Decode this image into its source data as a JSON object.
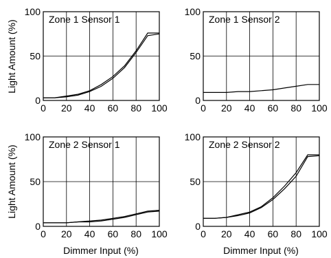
{
  "figure": {
    "ylabel": "Light Amount (%)",
    "xlabel": "Dimmer Input (%)"
  },
  "chart_data": [
    {
      "type": "line",
      "title": "Zone 1 Sensor 1",
      "xlabel": "",
      "ylabel": "Light Amount (%)",
      "xlim": [
        0,
        100
      ],
      "ylim": [
        0,
        100
      ],
      "xticks": [
        0,
        20,
        40,
        60,
        80,
        100
      ],
      "yticks": [
        0,
        50,
        100
      ],
      "grid": true,
      "series": [
        {
          "x": [
            0,
            10,
            20,
            30,
            40,
            50,
            60,
            70,
            80,
            90,
            100
          ],
          "values": [
            3,
            3,
            4,
            6,
            10,
            16,
            25,
            37,
            54,
            73,
            75
          ]
        },
        {
          "x": [
            0,
            10,
            20,
            30,
            40,
            50,
            60,
            70,
            80,
            90,
            100
          ],
          "values": [
            3,
            3,
            5,
            7,
            11,
            18,
            27,
            39,
            56,
            76,
            76
          ]
        }
      ]
    },
    {
      "type": "line",
      "title": "Zone 1 Sensor 2",
      "xlabel": "",
      "ylabel": "",
      "xlim": [
        0,
        100
      ],
      "ylim": [
        0,
        100
      ],
      "xticks": [
        0,
        20,
        40,
        60,
        80,
        100
      ],
      "yticks": [
        0,
        50,
        100
      ],
      "grid": true,
      "series": [
        {
          "x": [
            0,
            10,
            20,
            30,
            40,
            50,
            60,
            70,
            80,
            90,
            100
          ],
          "values": [
            9,
            9,
            9,
            10,
            10,
            11,
            12,
            14,
            16,
            18,
            18
          ]
        }
      ]
    },
    {
      "type": "line",
      "title": "Zone 2 Sensor 1",
      "xlabel": "Dimmer Input (%)",
      "ylabel": "Light Amount (%)",
      "xlim": [
        0,
        100
      ],
      "ylim": [
        0,
        100
      ],
      "xticks": [
        0,
        20,
        40,
        60,
        80,
        100
      ],
      "yticks": [
        0,
        50,
        100
      ],
      "grid": true,
      "series": [
        {
          "x": [
            0,
            10,
            20,
            30,
            40,
            50,
            60,
            70,
            80,
            90,
            100
          ],
          "values": [
            4,
            4,
            4,
            5,
            5,
            6,
            8,
            10,
            13,
            16,
            17
          ]
        },
        {
          "x": [
            0,
            10,
            20,
            30,
            40,
            50,
            60,
            70,
            80,
            90,
            100
          ],
          "values": [
            4,
            4,
            4,
            5,
            6,
            7,
            9,
            11,
            14,
            17,
            18
          ]
        }
      ]
    },
    {
      "type": "line",
      "title": "Zone 2 Sensor 2",
      "xlabel": "Dimmer Input (%)",
      "ylabel": "",
      "xlim": [
        0,
        100
      ],
      "ylim": [
        0,
        100
      ],
      "xticks": [
        0,
        20,
        40,
        60,
        80,
        100
      ],
      "yticks": [
        0,
        50,
        100
      ],
      "grid": true,
      "series": [
        {
          "x": [
            0,
            10,
            20,
            30,
            40,
            50,
            60,
            70,
            80,
            90,
            100
          ],
          "values": [
            9,
            9,
            10,
            12,
            15,
            21,
            30,
            42,
            56,
            78,
            79
          ]
        },
        {
          "x": [
            0,
            10,
            20,
            30,
            40,
            50,
            60,
            70,
            80,
            90,
            100
          ],
          "values": [
            9,
            9,
            10,
            13,
            16,
            22,
            32,
            45,
            60,
            80,
            80
          ]
        }
      ]
    }
  ]
}
